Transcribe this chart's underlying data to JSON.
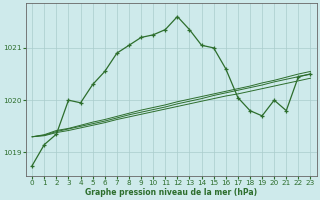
{
  "xlabel": "Graphe pression niveau de la mer (hPa)",
  "background_color": "#ceeaeb",
  "grid_color": "#aacccc",
  "line_color": "#2d6e2d",
  "hours": [
    0,
    1,
    2,
    3,
    4,
    5,
    6,
    7,
    8,
    9,
    10,
    11,
    12,
    13,
    14,
    15,
    16,
    17,
    18,
    19,
    20,
    21,
    22,
    23
  ],
  "line_main": [
    1018.75,
    1019.15,
    1019.35,
    1020.0,
    1019.95,
    1020.3,
    1020.55,
    1020.9,
    1021.05,
    1021.2,
    1021.25,
    1021.35,
    1021.6,
    1021.35,
    1021.05,
    1021.0,
    1020.6,
    1020.05,
    1019.8,
    1019.7,
    1020.0,
    1019.8,
    1020.45,
    1020.5
  ],
  "line_a": [
    1019.3,
    1019.32,
    1019.38,
    1019.42,
    1019.47,
    1019.52,
    1019.57,
    1019.63,
    1019.68,
    1019.73,
    1019.78,
    1019.83,
    1019.88,
    1019.93,
    1019.98,
    1020.03,
    1020.08,
    1020.12,
    1020.17,
    1020.22,
    1020.27,
    1020.32,
    1020.37,
    1020.42
  ],
  "line_b": [
    1019.3,
    1019.33,
    1019.4,
    1019.45,
    1019.5,
    1019.55,
    1019.6,
    1019.66,
    1019.72,
    1019.77,
    1019.82,
    1019.87,
    1019.93,
    1019.98,
    1020.03,
    1020.09,
    1020.14,
    1020.19,
    1020.24,
    1020.29,
    1020.35,
    1020.4,
    1020.45,
    1020.5
  ],
  "line_c": [
    1019.3,
    1019.34,
    1019.42,
    1019.46,
    1019.52,
    1019.58,
    1019.63,
    1019.69,
    1019.75,
    1019.81,
    1019.86,
    1019.91,
    1019.97,
    1020.02,
    1020.07,
    1020.12,
    1020.17,
    1020.22,
    1020.27,
    1020.33,
    1020.38,
    1020.44,
    1020.5,
    1020.55
  ],
  "ylim": [
    1018.55,
    1021.85
  ],
  "yticks": [
    1019,
    1020,
    1021
  ],
  "xlim_min": -0.5,
  "xlim_max": 23.5,
  "xticks": [
    0,
    1,
    2,
    3,
    4,
    5,
    6,
    7,
    8,
    9,
    10,
    11,
    12,
    13,
    14,
    15,
    16,
    17,
    18,
    19,
    20,
    21,
    22,
    23
  ]
}
